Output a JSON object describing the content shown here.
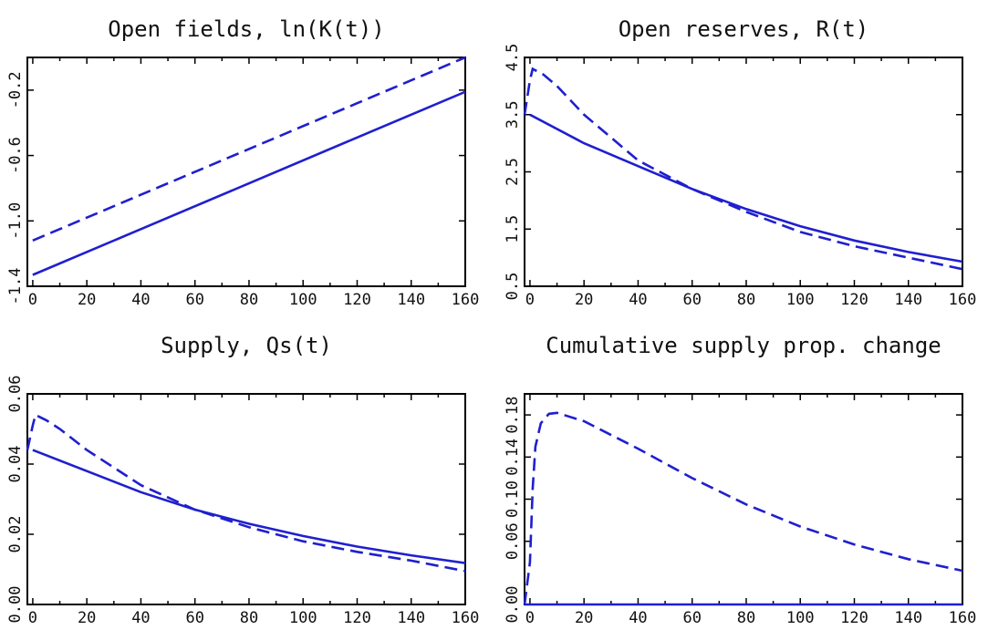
{
  "chart_data": [
    {
      "type": "line",
      "title": "Open fields, ln(K(t))",
      "xlim": [
        -2,
        160
      ],
      "ylim": [
        -1.4,
        0.0
      ],
      "xticks": [
        "0",
        "20",
        "40",
        "60",
        "80",
        "100",
        "120",
        "140",
        "160"
      ],
      "yticks": [
        "-1.4",
        "-1.0",
        "-0.6",
        "-0.2"
      ],
      "series": [
        {
          "style": "solid",
          "x": [
            0,
            40,
            80,
            120,
            160
          ],
          "y": [
            -1.33,
            -1.05,
            -0.77,
            -0.49,
            -0.21
          ]
        },
        {
          "style": "dashed",
          "x": [
            0,
            40,
            80,
            120,
            160
          ],
          "y": [
            -1.12,
            -0.84,
            -0.56,
            -0.28,
            0.0
          ]
        }
      ]
    },
    {
      "type": "line",
      "title": "Open reserves, R(t)",
      "xlim": [
        -2,
        160
      ],
      "ylim": [
        0.5,
        4.5
      ],
      "xticks": [
        "0",
        "20",
        "40",
        "60",
        "80",
        "100",
        "120",
        "140",
        "160"
      ],
      "yticks": [
        "0.5",
        "1.5",
        "2.5",
        "3.5",
        "4.5"
      ],
      "series": [
        {
          "style": "solid",
          "x": [
            0,
            20,
            40,
            60,
            80,
            100,
            120,
            140,
            160
          ],
          "y": [
            3.5,
            3.0,
            2.6,
            2.2,
            1.85,
            1.55,
            1.3,
            1.1,
            0.93
          ]
        },
        {
          "style": "dashed",
          "x": [
            -2,
            0,
            1,
            5,
            10,
            20,
            40,
            60,
            80,
            100,
            120,
            140,
            160
          ],
          "y": [
            3.5,
            4.1,
            4.3,
            4.2,
            4.0,
            3.5,
            2.7,
            2.2,
            1.8,
            1.45,
            1.2,
            1.0,
            0.8
          ]
        }
      ]
    },
    {
      "type": "line",
      "title": "Supply, Qs(t)",
      "xlim": [
        -2,
        160
      ],
      "ylim": [
        0.0,
        0.06
      ],
      "xticks": [
        "0",
        "20",
        "40",
        "60",
        "80",
        "100",
        "120",
        "140",
        "160"
      ],
      "yticks": [
        "0.00",
        "0.02",
        "0.04",
        "0.06"
      ],
      "series": [
        {
          "style": "solid",
          "x": [
            0,
            20,
            40,
            60,
            80,
            100,
            120,
            140,
            160
          ],
          "y": [
            0.044,
            0.038,
            0.032,
            0.027,
            0.023,
            0.0195,
            0.0165,
            0.014,
            0.0118
          ]
        },
        {
          "style": "dashed",
          "x": [
            -2,
            0,
            1,
            5,
            10,
            20,
            40,
            60,
            80,
            100,
            120,
            140,
            160
          ],
          "y": [
            0.044,
            0.051,
            0.054,
            0.0525,
            0.05,
            0.044,
            0.034,
            0.027,
            0.022,
            0.018,
            0.015,
            0.0125,
            0.0095
          ]
        }
      ]
    },
    {
      "type": "line",
      "title": "Cumulative supply prop. change",
      "xlim": [
        -2,
        160
      ],
      "ylim": [
        0.0,
        0.2
      ],
      "xticks": [
        "0",
        "20",
        "40",
        "60",
        "80",
        "100",
        "120",
        "140",
        "160"
      ],
      "yticks": [
        "0.00",
        "0.06",
        "0.10",
        "0.14",
        "0.18"
      ],
      "series": [
        {
          "style": "solid",
          "x": [
            -2,
            160
          ],
          "y": [
            0.0,
            0.0
          ]
        },
        {
          "style": "dashed",
          "x": [
            -2,
            0,
            1,
            2,
            4,
            7,
            10,
            20,
            40,
            60,
            80,
            100,
            120,
            140,
            160
          ],
          "y": [
            0.0,
            0.04,
            0.11,
            0.15,
            0.172,
            0.181,
            0.182,
            0.174,
            0.148,
            0.12,
            0.095,
            0.074,
            0.057,
            0.043,
            0.032
          ]
        }
      ]
    }
  ]
}
